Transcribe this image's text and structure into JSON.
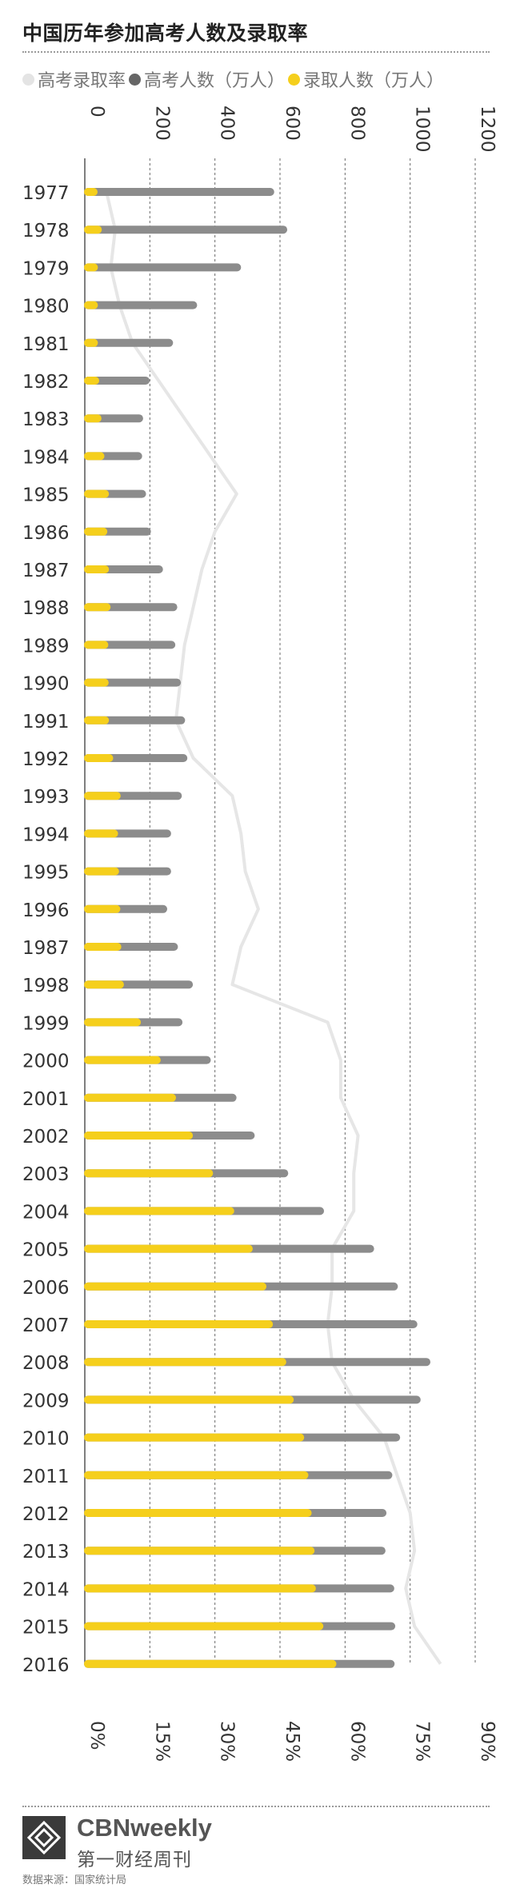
{
  "header": {
    "title": "中国历年参加高考人数及录取率"
  },
  "legend": [
    {
      "label": "高考录取率",
      "color": "#e4e4e4"
    },
    {
      "label": "高考人数（万人）",
      "color": "#666666"
    },
    {
      "label": "录取人数（万人）",
      "color": "#f5cf1c"
    }
  ],
  "chart_data": {
    "type": "bar",
    "orientation": "horizontal",
    "title": "中国历年参加高考人数及录取率",
    "categories": [
      "1977",
      "1978",
      "1979",
      "1980",
      "1981",
      "1982",
      "1983",
      "1984",
      "1985",
      "1986",
      "1987",
      "1988",
      "1989",
      "1990",
      "1991",
      "1992",
      "1993",
      "1994",
      "1995",
      "1996",
      "1987",
      "1998",
      "1999",
      "2000",
      "2001",
      "2002",
      "2003",
      "2004",
      "2005",
      "2006",
      "2007",
      "2008",
      "2009",
      "2010",
      "2011",
      "2012",
      "2013",
      "2014",
      "2015",
      "2016"
    ],
    "value_axis_top": {
      "min": 0,
      "max": 1200,
      "ticks": [
        "0",
        "200",
        "400",
        "600",
        "800",
        "1000",
        "1200"
      ]
    },
    "value_axis_bottom": {
      "min": 0,
      "max": 90,
      "ticks": [
        "0%",
        "15%",
        "30%",
        "45%",
        "60%",
        "75%",
        "90%"
      ]
    },
    "grid": true,
    "legend_position": "top-left",
    "series": [
      {
        "name": "高考人数（万人）",
        "color": "#8c8c8c",
        "axis": "top",
        "values": [
          570,
          610,
          468,
          333,
          259,
          187,
          167,
          164,
          176,
          191,
          228,
          272,
          266,
          283,
          296,
          303,
          286,
          253,
          253,
          241,
          274,
          320,
          288,
          375,
          454,
          510,
          613,
          723,
          877,
          950,
          1010,
          1050,
          1020,
          957,
          933,
          915,
          912,
          939,
          942,
          940
        ]
      },
      {
        "name": "录取人数（万人）",
        "color": "#f5cf1c",
        "axis": "top",
        "values": [
          27,
          40,
          28,
          28,
          28,
          32,
          39,
          48,
          62,
          57,
          62,
          67,
          60,
          61,
          62,
          75,
          98,
          90,
          93,
          97,
          100,
          108,
          160,
          221,
          268,
          320,
          382,
          447,
          504,
          546,
          566,
          607,
          630,
          662,
          675,
          685,
          694,
          698,
          721,
          761
        ]
      },
      {
        "name": "高考录取率",
        "color": "#e6e6e6",
        "axis": "bottom",
        "values": [
          5,
          7,
          6,
          8,
          11,
          17,
          23,
          29,
          35,
          30,
          27,
          25,
          23,
          22,
          21,
          25,
          34,
          36,
          37,
          40,
          36,
          34,
          56,
          59,
          59,
          63,
          62,
          62,
          57,
          57,
          56,
          57,
          62,
          69,
          72,
          75,
          76,
          74,
          76,
          82
        ]
      }
    ]
  },
  "footer": {
    "brand_en": "CBNweekly",
    "brand_cn": "第一财经周刊",
    "source": "数据来源：国家统计局"
  }
}
